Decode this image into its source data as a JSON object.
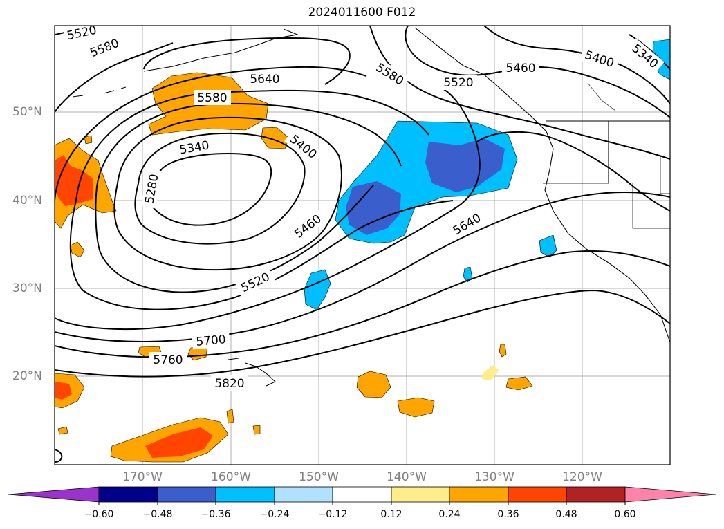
{
  "title": "2024011600 F012",
  "lat_labels": [
    "50°N",
    "40°N",
    "30°N",
    "20°N"
  ],
  "lon_labels": [
    "170°W",
    "160°W",
    "150°W",
    "140°W",
    "130°W",
    "120°W"
  ],
  "contour_labels": [
    "5520",
    "5580",
    "5640",
    "5580",
    "5520",
    "5460",
    "5400",
    "5340",
    "5580",
    "5340",
    "5280",
    "5400",
    "5460",
    "5640",
    "5520",
    "5700",
    "5760",
    "5820"
  ],
  "colorbar": {
    "ticks": [
      "−0.60",
      "−0.48",
      "−0.36",
      "−0.24",
      "−0.12",
      "0.12",
      "0.24",
      "0.36",
      "0.48",
      "0.60"
    ],
    "colors": [
      "#9a32cd",
      "#00008b",
      "#3a5fcd",
      "#00bfff",
      "#b0e2ff",
      "#ffffff",
      "#ffec8b",
      "#ffa500",
      "#ff4500",
      "#b22222",
      "#ff82ab"
    ]
  }
}
